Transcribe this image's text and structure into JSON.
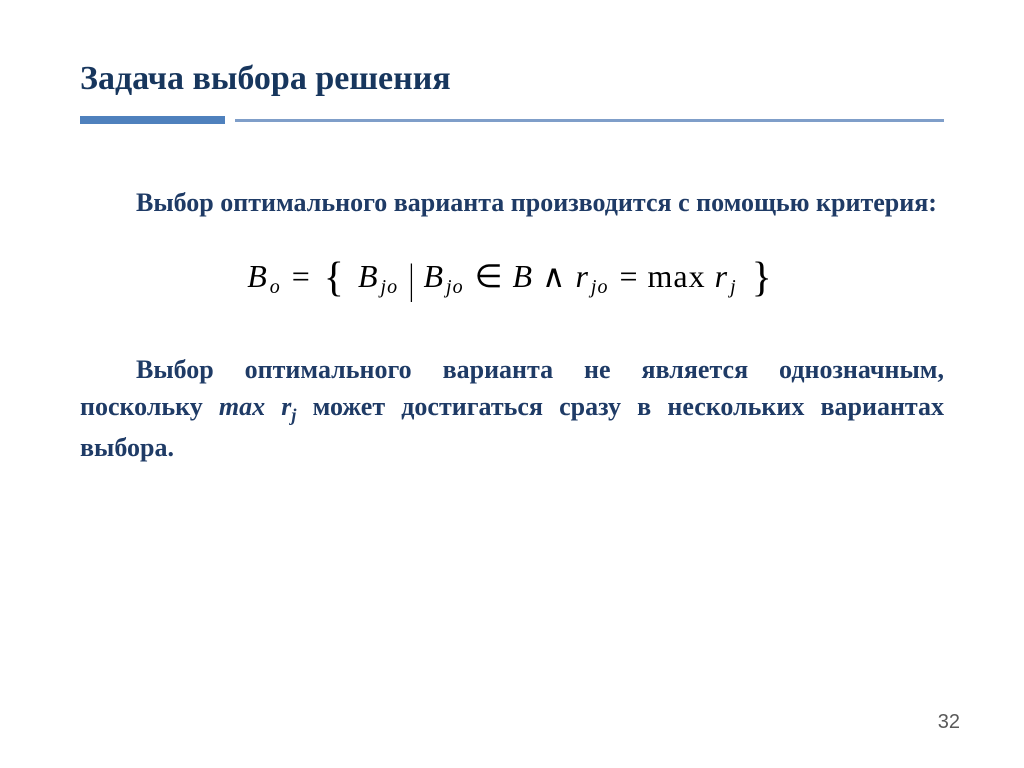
{
  "title": "Задача выбора решения",
  "rule": {
    "thick_color": "#4f81bd",
    "thin_color": "#7f9ec9"
  },
  "paragraph1": "Выбор оптимального варианта производится с помощью критерия:",
  "formula": {
    "lhs_var": "B",
    "lhs_sub": "o",
    "eq": "=",
    "lbrace": "{",
    "a_var": "B",
    "a_sub": "jo",
    "bar": "|",
    "b_var": "B",
    "b_sub": "jo",
    "in": "∈",
    "set_var": "B",
    "and": "∧",
    "r1_var": "r",
    "r1_sub": "jo",
    "eq2": "=",
    "fn": "max",
    "r2_var": "r",
    "r2_sub": "j",
    "rbrace": "}"
  },
  "paragraph2_a": "Выбор оптимального варианта не является однозначным, поскольку ",
  "paragraph2_mathvar": "max r",
  "paragraph2_mathsub": "j",
  "paragraph2_b": " может достигаться сразу в нескольких вариантах выбора.",
  "page_number": "32",
  "colors": {
    "title": "#17365d",
    "body_text": "#1f3b66",
    "formula_text": "#000000",
    "pagenum": "#595959",
    "background": "#ffffff"
  },
  "fonts": {
    "title_size_pt": 26,
    "body_size_pt": 20,
    "formula_size_pt": 24,
    "pagenum_size_pt": 15
  }
}
